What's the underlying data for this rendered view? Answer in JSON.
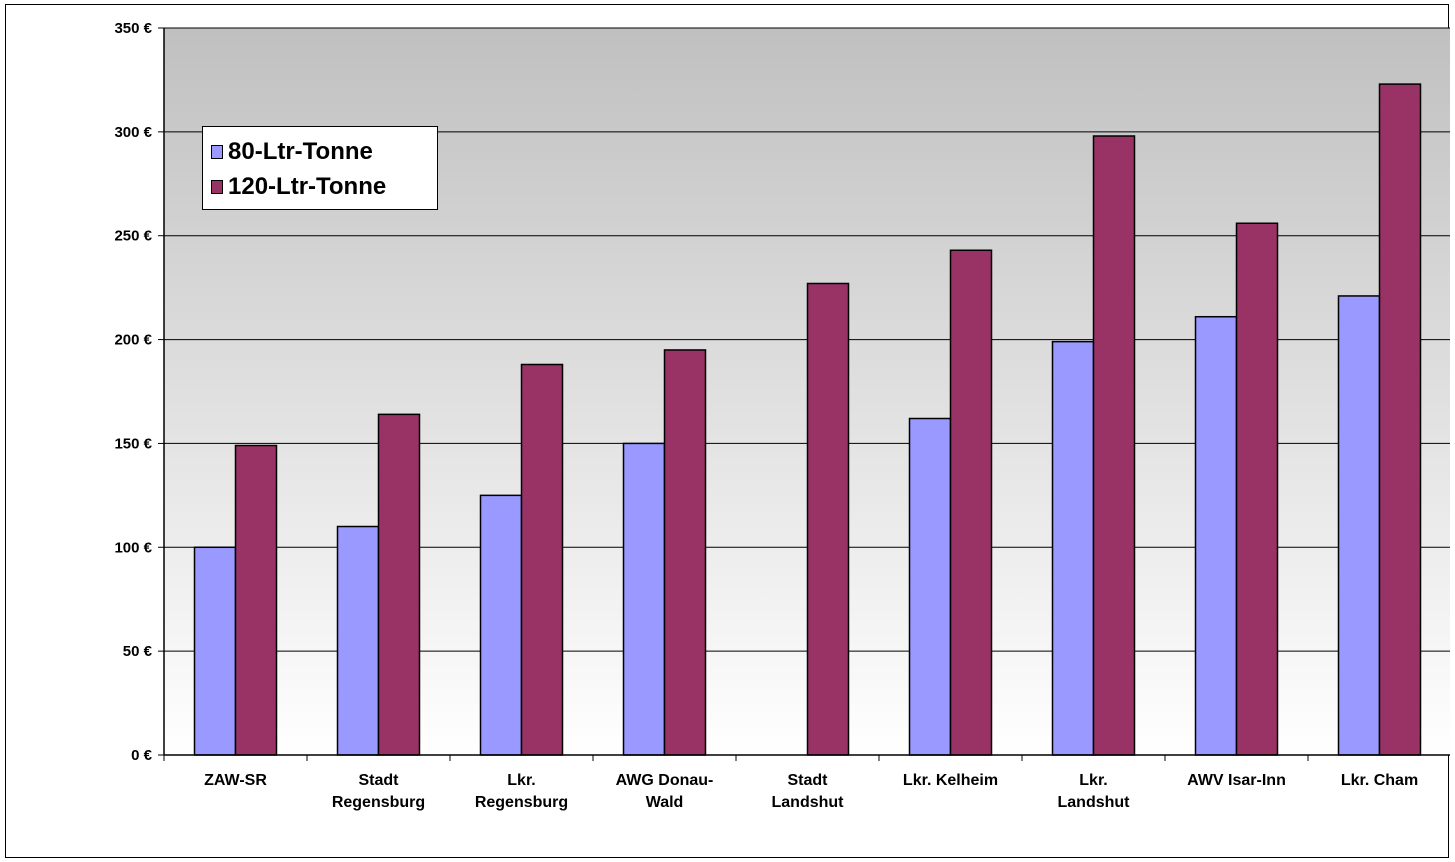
{
  "chart_data": {
    "type": "bar",
    "title": "",
    "xlabel": "",
    "ylabel": "",
    "ylim": [
      0,
      350
    ],
    "yticks": [
      0,
      50,
      100,
      150,
      200,
      250,
      300,
      350
    ],
    "ytick_labels": [
      "0 €",
      "50 €",
      "100 €",
      "150 €",
      "200 €",
      "250 €",
      "300 €",
      "350 €"
    ],
    "grid": true,
    "legend_position": "top-left",
    "categories": [
      [
        "ZAW-SR"
      ],
      [
        "Stadt",
        "Regensburg"
      ],
      [
        "Lkr.",
        "Regensburg"
      ],
      [
        "AWG Donau-",
        "Wald"
      ],
      [
        "Stadt",
        "Landshut"
      ],
      [
        "Lkr. Kelheim"
      ],
      [
        "Lkr.",
        "Landshut"
      ],
      [
        "AWV Isar-Inn"
      ],
      [
        "Lkr. Cham"
      ]
    ],
    "series": [
      {
        "name": "80-Ltr-Tonne",
        "color": "#9999ff",
        "values": [
          100,
          110,
          125,
          150,
          null,
          162,
          199,
          211,
          221
        ]
      },
      {
        "name": "120-Ltr-Tonne",
        "color": "#993366",
        "values": [
          149,
          164,
          188,
          195,
          227,
          243,
          298,
          256,
          323
        ]
      }
    ],
    "plot_background": [
      "#c0c0c0",
      "#ffffff"
    ]
  }
}
